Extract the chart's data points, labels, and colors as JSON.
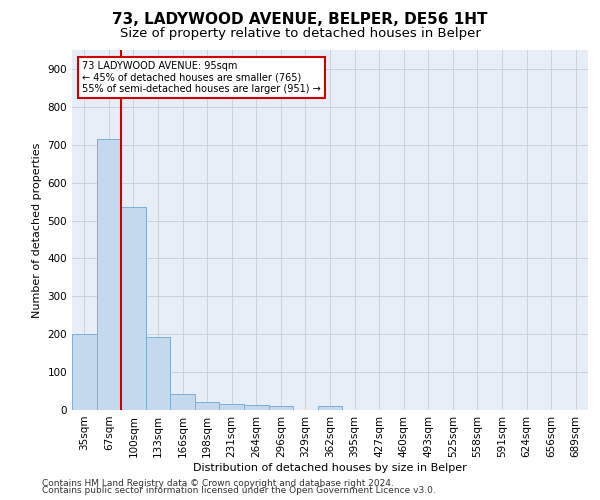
{
  "title": "73, LADYWOOD AVENUE, BELPER, DE56 1HT",
  "subtitle": "Size of property relative to detached houses in Belper",
  "xlabel": "Distribution of detached houses by size in Belper",
  "ylabel": "Number of detached properties",
  "footnote1": "Contains HM Land Registry data © Crown copyright and database right 2024.",
  "footnote2": "Contains public sector information licensed under the Open Government Licence v3.0.",
  "categories": [
    "35sqm",
    "67sqm",
    "100sqm",
    "133sqm",
    "166sqm",
    "198sqm",
    "231sqm",
    "264sqm",
    "296sqm",
    "329sqm",
    "362sqm",
    "395sqm",
    "427sqm",
    "460sqm",
    "493sqm",
    "525sqm",
    "558sqm",
    "591sqm",
    "624sqm",
    "656sqm",
    "689sqm"
  ],
  "values": [
    200,
    715,
    535,
    193,
    42,
    20,
    15,
    13,
    10,
    0,
    10,
    0,
    0,
    0,
    0,
    0,
    0,
    0,
    0,
    0,
    0
  ],
  "bar_color": "#c5d9ee",
  "bar_edge_color": "#7aafd4",
  "vline_color": "#cc0000",
  "annotation_box_color": "#cc0000",
  "annotation_box_text": "73 LADYWOOD AVENUE: 95sqm\n← 45% of detached houses are smaller (765)\n55% of semi-detached houses are larger (951) →",
  "background_color": "#e8eef7",
  "ylim": [
    0,
    950
  ],
  "yticks": [
    0,
    100,
    200,
    300,
    400,
    500,
    600,
    700,
    800,
    900
  ],
  "grid_color": "#c8cdd8",
  "title_fontsize": 11,
  "subtitle_fontsize": 9.5,
  "axis_label_fontsize": 8,
  "tick_fontsize": 7.5,
  "annotation_fontsize": 7,
  "footnote_fontsize": 6.5
}
